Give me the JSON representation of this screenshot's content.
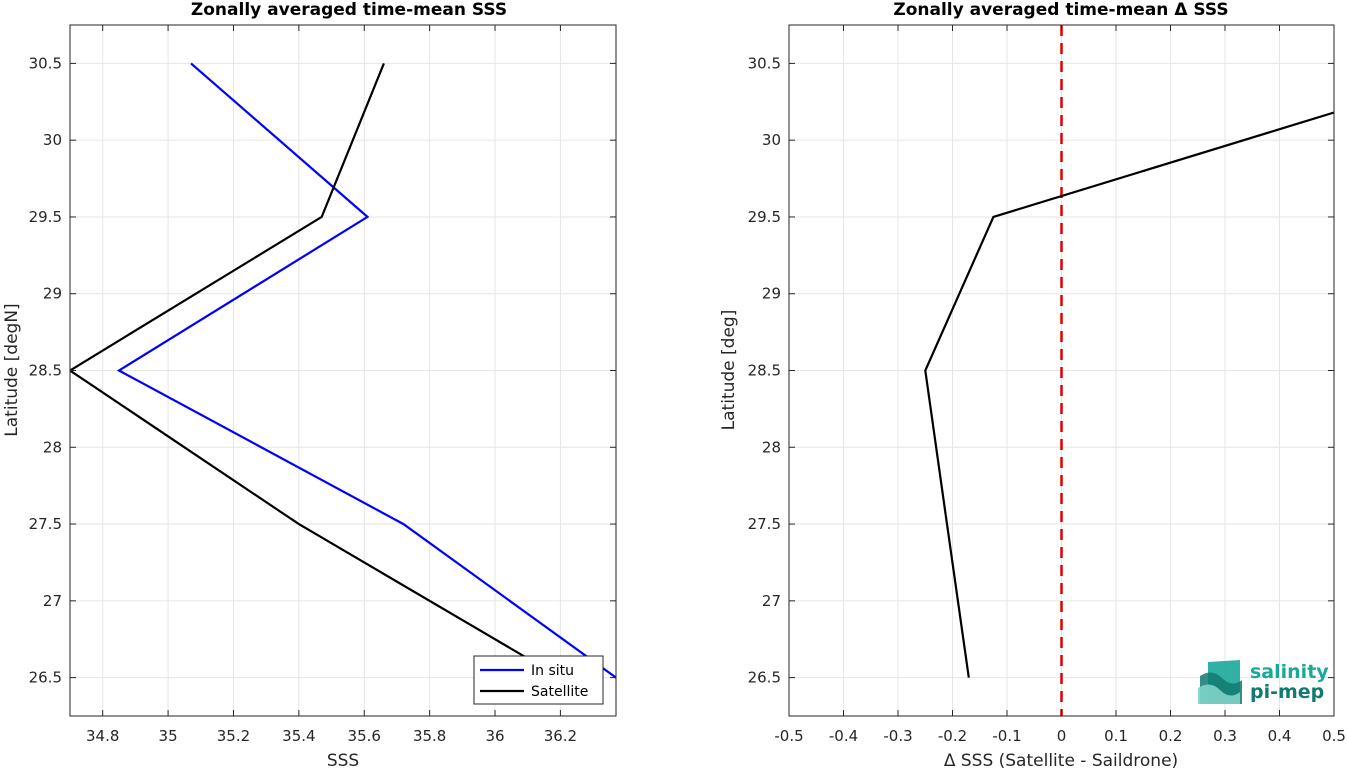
{
  "chart_data": [
    {
      "type": "line",
      "title": "Zonally averaged time-mean SSS",
      "xlabel": "SSS",
      "ylabel": "Latitude [degN]",
      "xlim": [
        34.7,
        36.37
      ],
      "ylim": [
        26.25,
        30.75
      ],
      "xticks": [
        34.8,
        35,
        35.2,
        35.4,
        35.6,
        35.8,
        36,
        36.2
      ],
      "xtick_labels": [
        "34.8",
        "35",
        "35.2",
        "35.4",
        "35.6",
        "35.8",
        "36",
        "36.2"
      ],
      "yticks": [
        26.5,
        27,
        27.5,
        28,
        28.5,
        29,
        29.5,
        30,
        30.5
      ],
      "ytick_labels": [
        "26.5",
        "27",
        "27.5",
        "28",
        "28.5",
        "29",
        "29.5",
        "30",
        "30.5"
      ],
      "grid": true,
      "legend_position": "bottom-right",
      "series": [
        {
          "name": "In situ",
          "color": "#0000ff",
          "x": [
            36.37,
            35.72,
            34.85,
            35.61,
            35.07
          ],
          "y": [
            26.5,
            27.5,
            28.5,
            29.5,
            30.5
          ]
        },
        {
          "name": "Satellite",
          "color": "#000000",
          "x": [
            36.2,
            35.4,
            34.7,
            35.47,
            35.66
          ],
          "y": [
            26.5,
            27.5,
            28.5,
            29.5,
            30.5
          ]
        }
      ]
    },
    {
      "type": "line",
      "title": "Zonally averaged time-mean Δ SSS",
      "xlabel": "Δ SSS (Satellite - Saildrone)",
      "ylabel": "Latitude [deg]",
      "xlim": [
        -0.5,
        0.5
      ],
      "ylim": [
        26.25,
        30.75
      ],
      "xticks": [
        -0.5,
        -0.4,
        -0.3,
        -0.2,
        -0.1,
        0,
        0.1,
        0.2,
        0.3,
        0.4,
        0.5
      ],
      "xtick_labels": [
        "-0.5",
        "-0.4",
        "-0.3",
        "-0.2",
        "-0.1",
        "0",
        "0.1",
        "0.2",
        "0.3",
        "0.4",
        "0.5"
      ],
      "yticks": [
        26.5,
        27,
        27.5,
        28,
        28.5,
        29,
        29.5,
        30,
        30.5
      ],
      "ytick_labels": [
        "26.5",
        "27",
        "27.5",
        "28",
        "28.5",
        "29",
        "29.5",
        "30",
        "30.5"
      ],
      "grid": true,
      "reference_line": {
        "x": 0,
        "color": "#e00000",
        "style": "dashed"
      },
      "series": [
        {
          "color": "#000000",
          "x": [
            -0.17,
            -0.21,
            -0.25,
            -0.125,
            0.5
          ],
          "y": [
            26.5,
            27.5,
            28.5,
            29.5,
            30.18
          ]
        }
      ]
    }
  ],
  "logo": {
    "line1": "salinity",
    "line2": "pi-mep",
    "color1": "#1aa89a",
    "color2": "#127a70"
  }
}
